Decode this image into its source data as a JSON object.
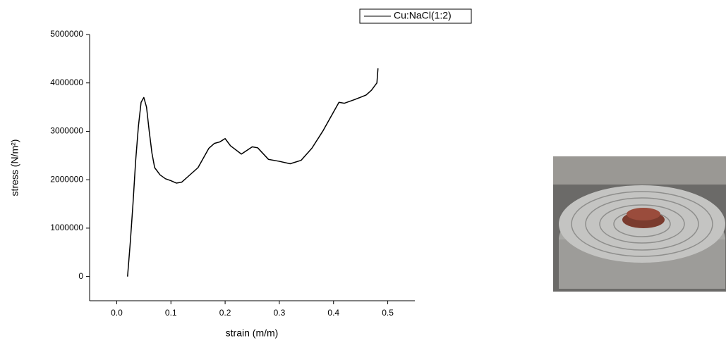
{
  "chart_data": {
    "type": "line",
    "x_label": "strain (m/m)",
    "y_label": "stress (N/m²)",
    "x": [
      0.02,
      0.025,
      0.03,
      0.035,
      0.04,
      0.045,
      0.05,
      0.055,
      0.06,
      0.065,
      0.07,
      0.08,
      0.09,
      0.1,
      0.11,
      0.12,
      0.13,
      0.15,
      0.17,
      0.18,
      0.19,
      0.2,
      0.21,
      0.23,
      0.25,
      0.26,
      0.28,
      0.3,
      0.32,
      0.34,
      0.36,
      0.38,
      0.4,
      0.41,
      0.42,
      0.44,
      0.46,
      0.47,
      0.48,
      0.482
    ],
    "series": [
      {
        "name": "Cu:NaCl(1:2)",
        "color": "#000000",
        "values": [
          0,
          700000,
          1500000,
          2400000,
          3100000,
          3600000,
          3700000,
          3500000,
          3000000,
          2550000,
          2250000,
          2100000,
          2020000,
          1980000,
          1930000,
          1950000,
          2050000,
          2250000,
          2650000,
          2750000,
          2780000,
          2850000,
          2700000,
          2530000,
          2680000,
          2660000,
          2420000,
          2380000,
          2330000,
          2400000,
          2650000,
          3000000,
          3400000,
          3600000,
          3580000,
          3660000,
          3750000,
          3850000,
          4000000,
          4300000
        ]
      }
    ],
    "xlim": [
      -0.05,
      0.55
    ],
    "ylim": [
      -500000,
      5000000
    ],
    "xticks": [
      {
        "value": 0,
        "label": "0.0"
      },
      0.1,
      0.2,
      0.3,
      0.4,
      0.5
    ],
    "yticks": [
      0,
      1000000,
      2000000,
      3000000,
      4000000,
      5000000
    ],
    "grid": false,
    "legend": "top-right"
  }
}
